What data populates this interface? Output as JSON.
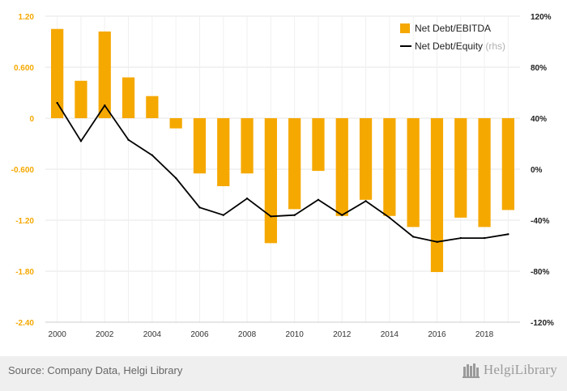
{
  "chart_data": {
    "type": "bar",
    "x": [
      "2000",
      "2001",
      "2002",
      "2003",
      "2004",
      "2005",
      "2006",
      "2007",
      "2008",
      "2009",
      "2010",
      "2011",
      "2012",
      "2013",
      "2014",
      "2015",
      "2016",
      "2017",
      "2018",
      "2019"
    ],
    "x_tick_labels": [
      "2000",
      "2002",
      "2004",
      "2006",
      "2008",
      "2010",
      "2012",
      "2014",
      "2016",
      "2018"
    ],
    "series": [
      {
        "name": "Net Debt/EBITDA",
        "type": "bar",
        "axis": "left",
        "color": "#f5a800",
        "values": [
          1.05,
          0.44,
          1.02,
          0.48,
          0.26,
          -0.12,
          -0.65,
          -0.8,
          -0.65,
          -1.47,
          -1.07,
          -0.62,
          -1.15,
          -0.96,
          -1.15,
          -1.28,
          -1.81,
          -1.17,
          -1.28,
          -1.08
        ]
      },
      {
        "name": "Net Debt/Equity",
        "name_suffix": "(rhs)",
        "type": "line",
        "axis": "right",
        "color": "#000000",
        "values": [
          52,
          22,
          50,
          23,
          11,
          -7,
          -30,
          -36,
          -23,
          -37,
          -36,
          -24,
          -36,
          -25,
          -38,
          -53,
          -57,
          -54,
          -54,
          -51
        ]
      }
    ],
    "y_left": {
      "ylim": [
        -2.4,
        1.2
      ],
      "tick_labels": [
        "1.20",
        "0.600",
        "0",
        "-0.600",
        "-1.20",
        "-1.80",
        "-2.40"
      ]
    },
    "y_right": {
      "ylim": [
        -120,
        120
      ],
      "tick_labels": [
        "120%",
        "80%",
        "40%",
        "0%",
        "-40%",
        "-80%",
        "-120%"
      ]
    },
    "grid": true,
    "legend_position": "top-right"
  },
  "footer": {
    "source": "Source: Company Data, Helgi Library",
    "logo_text": "HelgiLibrary",
    "logo_icon": "library-logo-icon"
  }
}
